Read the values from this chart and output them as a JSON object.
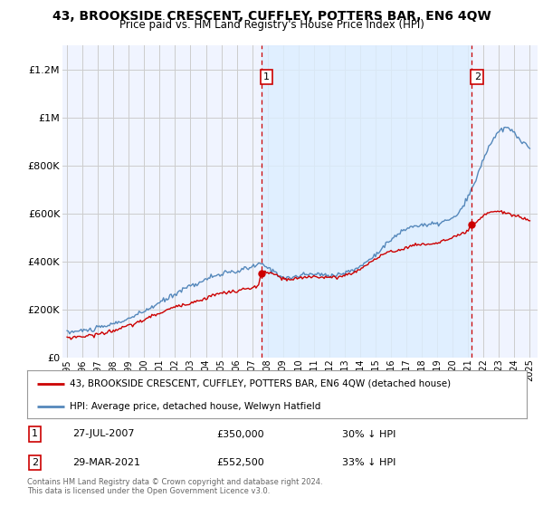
{
  "title": "43, BROOKSIDE CRESCENT, CUFFLEY, POTTERS BAR, EN6 4QW",
  "subtitle": "Price paid vs. HM Land Registry's House Price Index (HPI)",
  "legend_label_red": "43, BROOKSIDE CRESCENT, CUFFLEY, POTTERS BAR, EN6 4QW (detached house)",
  "legend_label_blue": "HPI: Average price, detached house, Welwyn Hatfield",
  "annotation1_date": "27-JUL-2007",
  "annotation1_price": "£350,000",
  "annotation1_hpi": "30% ↓ HPI",
  "annotation2_date": "29-MAR-2021",
  "annotation2_price": "£552,500",
  "annotation2_hpi": "33% ↓ HPI",
  "footer": "Contains HM Land Registry data © Crown copyright and database right 2024.\nThis data is licensed under the Open Government Licence v3.0.",
  "red_color": "#cc0000",
  "blue_color": "#5588bb",
  "shade_color": "#ddeeff",
  "vline_color": "#cc0000",
  "background_color": "#ffffff",
  "grid_color": "#cccccc",
  "ylim": [
    0,
    1300000
  ],
  "yticks": [
    0,
    200000,
    400000,
    600000,
    800000,
    1000000,
    1200000
  ],
  "ytick_labels": [
    "£0",
    "£200K",
    "£400K",
    "£600K",
    "£800K",
    "£1M",
    "£1.2M"
  ],
  "sale1_year": 2007.58,
  "sale1_value": 350000,
  "sale2_year": 2021.23,
  "sale2_value": 552500,
  "xmin": 1994.7,
  "xmax": 2025.5
}
